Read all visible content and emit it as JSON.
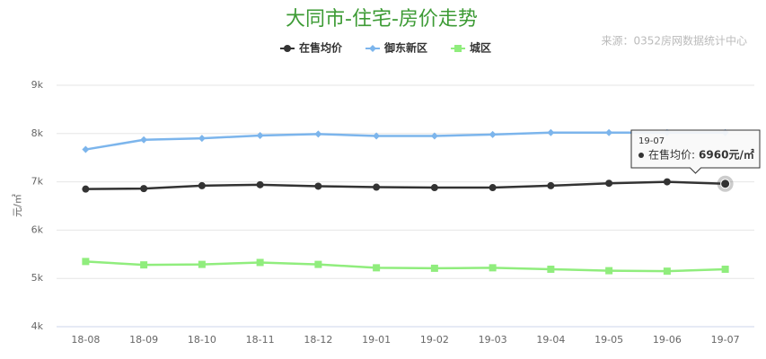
{
  "chart_data": {
    "type": "line",
    "title": "大同市-住宅-房价走势",
    "source": "来源：0352房网数据统计中心",
    "y_label": "元/㎡",
    "categories": [
      "18-08",
      "18-09",
      "18-10",
      "18-11",
      "18-12",
      "19-01",
      "19-02",
      "19-03",
      "19-04",
      "19-05",
      "19-06",
      "19-07"
    ],
    "series": [
      {
        "name": "在售均价",
        "color": "#333333",
        "marker": "circle",
        "values": [
          6850,
          6860,
          6920,
          6940,
          6910,
          6890,
          6880,
          6880,
          6920,
          6970,
          7000,
          6960
        ]
      },
      {
        "name": "御东新区",
        "color": "#7cb5ec",
        "marker": "diamond",
        "values": [
          7670,
          7870,
          7900,
          7960,
          7990,
          7950,
          7950,
          7980,
          8020,
          8020,
          8020,
          8020
        ]
      },
      {
        "name": "城区",
        "color": "#90ed7d",
        "marker": "square",
        "values": [
          5350,
          5280,
          5290,
          5330,
          5290,
          5220,
          5210,
          5220,
          5190,
          5160,
          5150,
          5190
        ]
      }
    ],
    "ylim": [
      4000,
      9000
    ],
    "yticks": [
      {
        "value": 4000,
        "label": "4k"
      },
      {
        "value": 5000,
        "label": "5k"
      },
      {
        "value": 6000,
        "label": "6k"
      },
      {
        "value": 7000,
        "label": "7k"
      },
      {
        "value": 8000,
        "label": "8k"
      },
      {
        "value": 9000,
        "label": "9k"
      }
    ],
    "grid": true,
    "tooltip": {
      "title": "19-07",
      "label": "在售均价:",
      "value": "6960元/㎡"
    }
  }
}
